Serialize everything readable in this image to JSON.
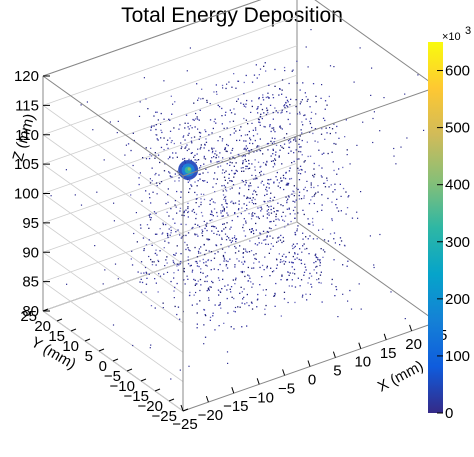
{
  "chart_data": {
    "type": "scatter3d",
    "title": "Total Energy Deposition",
    "xlabel": "X (mm)",
    "ylabel": "Y (mm)",
    "zlabel": "Z (mm)",
    "xlim": [
      -25,
      25
    ],
    "ylim": [
      -25,
      25
    ],
    "zlim": [
      80,
      120
    ],
    "x_ticks": [
      -25,
      -20,
      -15,
      -10,
      -5,
      0,
      5,
      10,
      15,
      20,
      25
    ],
    "y_ticks": [
      -25,
      -20,
      -15,
      -10,
      -5,
      0,
      5,
      10,
      15,
      20,
      25
    ],
    "z_ticks": [
      80,
      85,
      90,
      95,
      100,
      105,
      110,
      115,
      120
    ],
    "x_tick_labels": [
      "−25",
      "−20",
      "−15",
      "−10",
      "−5",
      "0",
      "5",
      "10",
      "15",
      "20",
      "25"
    ],
    "y_tick_labels": [
      "−25",
      "−20",
      "−15",
      "−10",
      "−5",
      "0",
      "5",
      "10",
      "15",
      "20",
      "25"
    ],
    "z_tick_labels": [
      "80",
      "85",
      "90",
      "95",
      "100",
      "105",
      "110",
      "115",
      "120"
    ],
    "colorbar": {
      "range": [
        0,
        650
      ],
      "ticks": [
        0,
        100,
        200,
        300,
        400,
        500,
        600
      ],
      "tick_labels": [
        "0",
        "100",
        "200",
        "300",
        "400",
        "500",
        "600"
      ],
      "multiplier": "×10",
      "exponent": "3",
      "colors": [
        "#352a87",
        "#0f5cdd",
        "#1481d6",
        "#06a4ca",
        "#2eb7a4",
        "#87bf77",
        "#d1bb59",
        "#fec832",
        "#f9fb0e"
      ]
    },
    "hotspot": {
      "x": -8,
      "y": 4,
      "z": 106,
      "peak_value": 100
    },
    "grid": true,
    "box": true
  }
}
